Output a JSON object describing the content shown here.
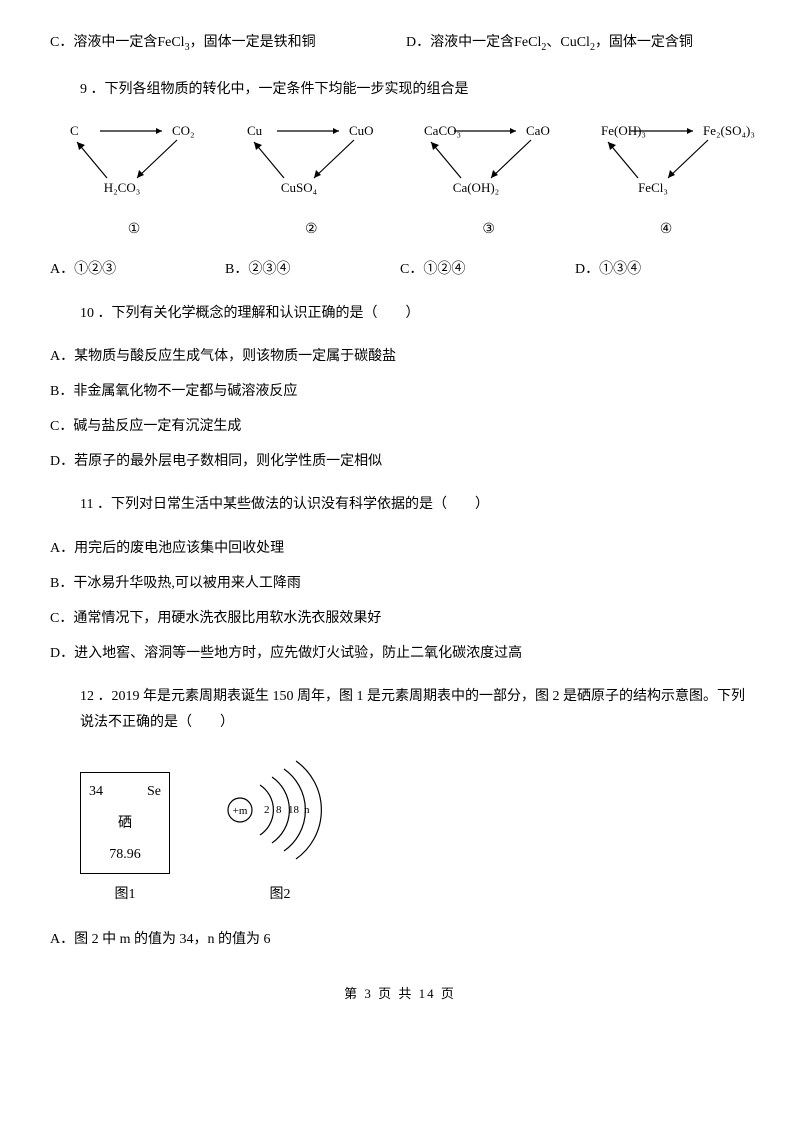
{
  "optC": {
    "prefix": "C．溶液中一定含",
    "chem": "FeCl",
    "sub": "3",
    "suffix": "，固体一定是铁和铜"
  },
  "optD": {
    "prefix": "D．溶液中一定含",
    "chem1": "FeCl",
    "sub1": "2",
    "sep": "、",
    "chem2": "CuCl",
    "sub2": "2",
    "suffix": "，固体一定含铜"
  },
  "q9": {
    "text": "9 ．下列各组物质的转化中，一定条件下均能一步实现的组合是"
  },
  "diagrams": [
    {
      "top_left": "C",
      "top_right": "CO₂",
      "bottom": "H₂CO₃",
      "num": "①"
    },
    {
      "top_left": "Cu",
      "top_right": "CuO",
      "bottom": "CuSO₄",
      "num": "②"
    },
    {
      "top_left": "CaCO₃",
      "top_right": "CaO",
      "bottom": "Ca(OH)₂",
      "num": "③"
    },
    {
      "top_left": "Fe(OH)₃",
      "top_right": "Fe₂(SO₄)₃",
      "bottom": "FeCl₃",
      "num": "④"
    }
  ],
  "q9_options": {
    "a": "A．①②③",
    "b": "B．②③④",
    "c": "C．①②④",
    "d": "D．①③④"
  },
  "q10": {
    "text": "10 ．下列有关化学概念的理解和认识正确的是（　　）",
    "a": "A．某物质与酸反应生成气体，则该物质一定属于碳酸盐",
    "b": "B．非金属氧化物不一定都与碱溶液反应",
    "c": "C．碱与盐反应一定有沉淀生成",
    "d": "D．若原子的最外层电子数相同，则化学性质一定相似"
  },
  "q11": {
    "text": "11 ．下列对日常生活中某些做法的认识没有科学依据的是（　　）",
    "a": "A．用完后的废电池应该集中回收处理",
    "b": "B．干冰易升华吸热,可以被用来人工降雨",
    "c": "C．通常情况下，用硬水洗衣服比用软水洗衣服效果好",
    "d": "D．进入地窖、溶洞等一些地方时，应先做灯火试验，防止二氧化碳浓度过高"
  },
  "q12": {
    "text": "12 ．2019 年是元素周期表诞生 150 周年，图 1 是元素周期表中的一部分，图 2 是硒原子的结构示意图。下列说法不正确的是（　　）",
    "box": {
      "num": "34",
      "sym": "Se",
      "name": "硒",
      "mass": "78.96"
    },
    "fig1_label": "图1",
    "fig2_label": "图2",
    "atom": {
      "center": "+m",
      "shells": "2 8 18 n"
    },
    "a": "A．图 2 中 m 的值为 34，n 的值为 6"
  },
  "footer": "第 3 页 共 14 页"
}
